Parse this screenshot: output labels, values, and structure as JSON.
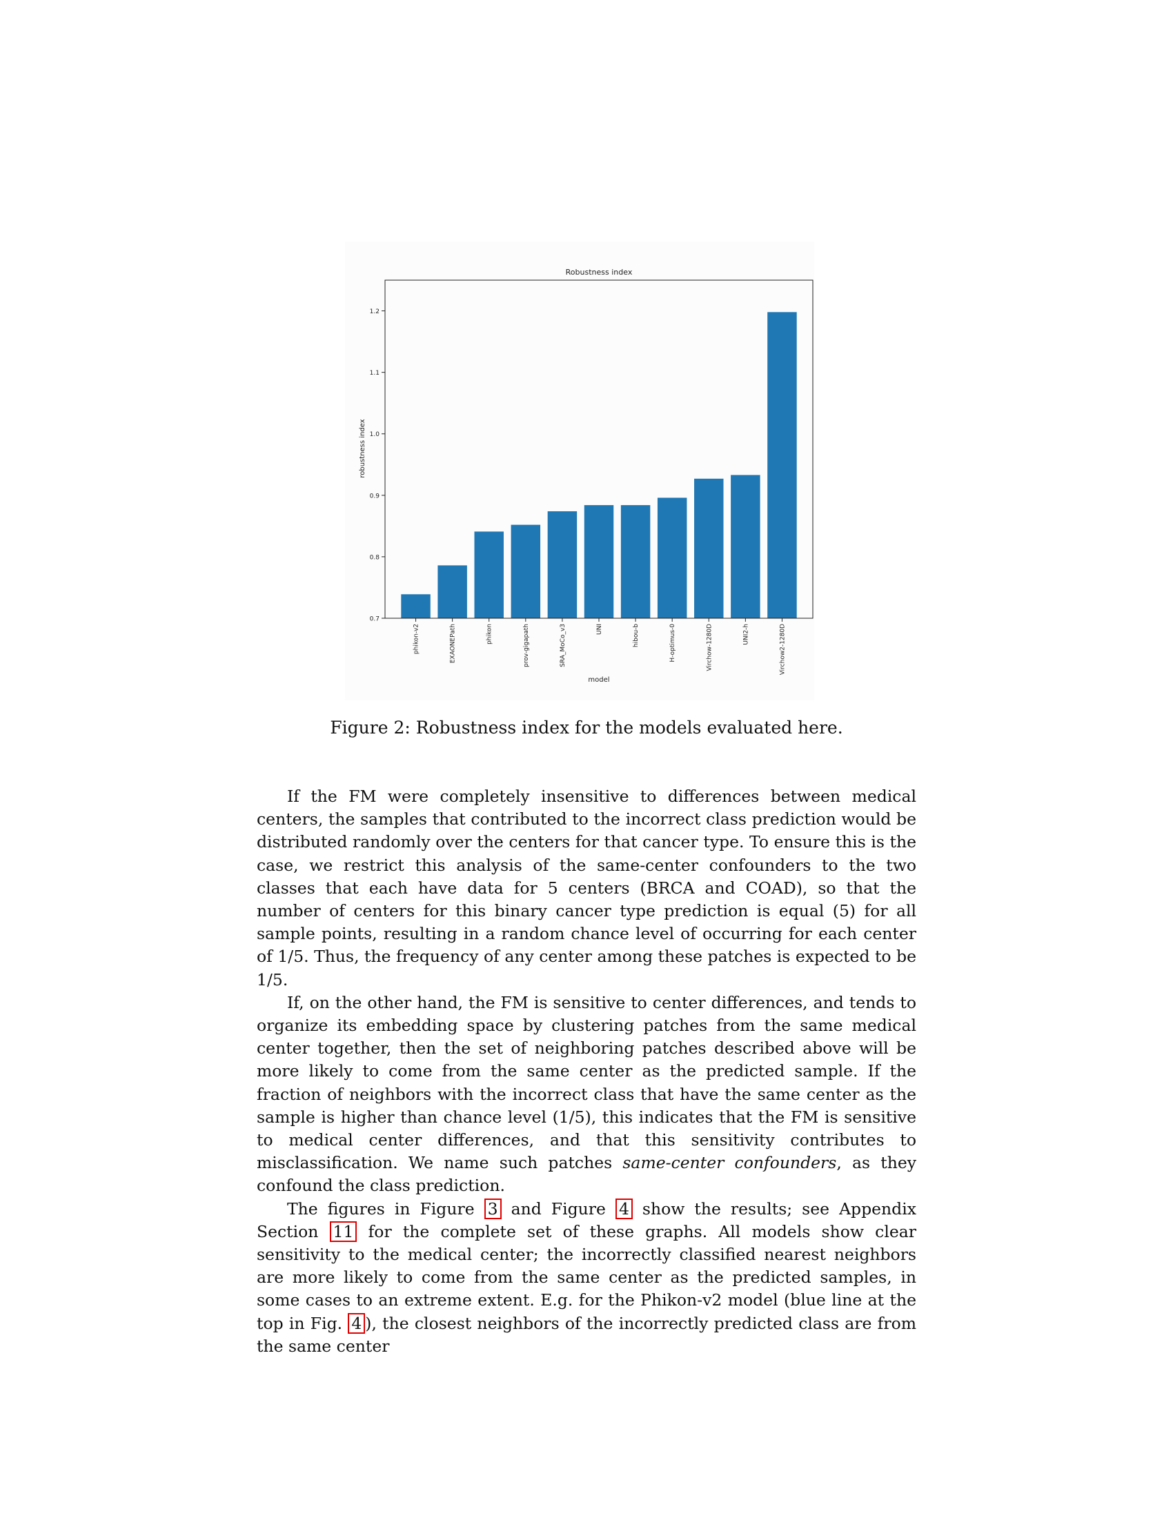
{
  "figure": {
    "chart_data": {
      "type": "bar",
      "title": "Robustness index",
      "xlabel": "model",
      "ylabel": "robustness index",
      "ylim": [
        0.7,
        1.25
      ],
      "yticks": [
        "0.7",
        "0.8",
        "0.9",
        "1.0",
        "1.1",
        "1.2"
      ],
      "grid": false,
      "bar_color": "#1f77b4",
      "categories": [
        "phikon-v2",
        "EXAONEPath",
        "phikon",
        "prov-gigapath",
        "SRA_MoCo_v3",
        "UNI",
        "hibou-b",
        "H-optimus-0",
        "Virchow-1280D",
        "UNI2-h",
        "Virchow2-1280D"
      ],
      "values": [
        0.739,
        0.786,
        0.841,
        0.852,
        0.874,
        0.884,
        0.884,
        0.896,
        0.927,
        0.933,
        1.198
      ]
    },
    "caption": "Figure 2: Robustness index for the models evaluated here."
  },
  "body": {
    "p1": "If the FM were completely insensitive to differences between medical centers, the samples that contributed to the incorrect class prediction would be distributed randomly over the centers for that cancer type. To ensure this is the case, we restrict this analysis of the same-center confounders to the two classes that each have data for 5 centers (BRCA and COAD), so that the number of centers for this binary cancer type prediction is equal (5) for all sample points, resulting in a random chance level of occurring for each center of 1/5. Thus, the frequency of any center among these patches is expected to be 1/5.",
    "p2_before": "If, on the other hand, the FM is sensitive to center differences, and tends to organize its embedding space by clustering patches from the same medical center together, then the set of neighboring patches described above will be more likely to come from the same center as the predicted sample. If the fraction of neighbors with the incorrect class that have the same center as the sample is higher than chance level (1/5), this indicates that the FM is sensitive to medical center differences, and that this sensitivity contributes to misclassification. We name such patches ",
    "p2_em": "same-center confounders",
    "p2_after": ", as they confound the class prediction.",
    "p3_a": "The figures in Figure ",
    "ref_fig3": "3",
    "p3_b": " and Figure ",
    "ref_fig4": "4",
    "p3_c": " show the results; see Appendix Section ",
    "ref_sec11": "11",
    "p3_d": " for the complete set of these graphs. All models show clear sensitivity to the medical center; the incorrectly classified nearest neighbors are more likely to come from the same center as the predicted samples, in some cases to an extreme extent. E.g. for the Phikon-v2 model (blue line at the top in Fig. ",
    "ref_fig4b": "4",
    "p3_e": "), the closest neighbors of the incorrectly predicted class are from the same center"
  }
}
